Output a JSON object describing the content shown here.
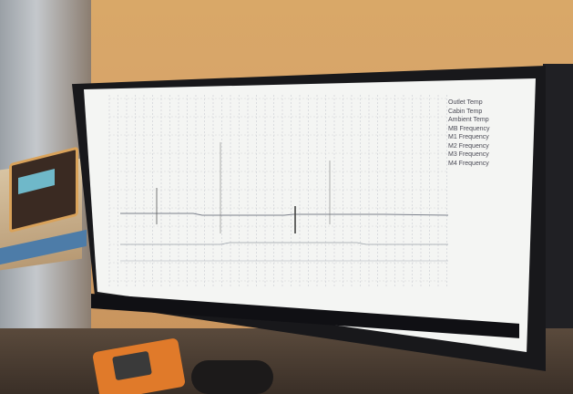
{
  "legend": {
    "items": [
      "Outlet Temp",
      "Cabin Temp",
      "Ambient Temp",
      "MB Frequency",
      "M1 Frequency",
      "M2 Frequency",
      "M3 Frequency",
      "M4 Frequency"
    ]
  },
  "colors": {
    "wall": "#d7a36a",
    "screen": "#f4f5f3",
    "bezel": "#18181b",
    "meter": "#e07a2a"
  }
}
